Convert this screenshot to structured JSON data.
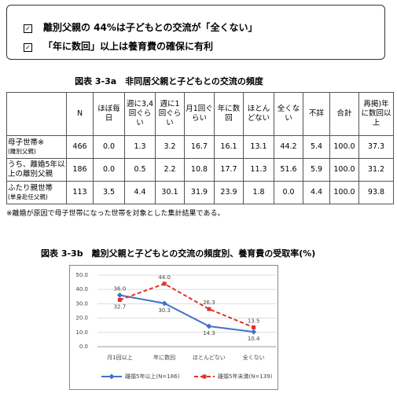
{
  "bullets": [
    "離別父親の 44%は子どもとの交流が「全くない」",
    "「年に数回」以上は養育費の確保に有利"
  ],
  "table": {
    "title": "図表 3-3a　非同居父親と子どもとの交流の頻度",
    "header": [
      "N",
      "ほぼ毎日",
      "週に3,4回ぐらい",
      "週に1回ぐらい",
      "月1回ぐらい",
      "年に数回",
      "ほとんどない",
      "全くない",
      "不詳",
      "合計",
      "再掲)年に数回以上"
    ],
    "rows": [
      {
        "label": "母子世帯※",
        "sublabel": "(離別父親)",
        "cells": [
          "466",
          "0.0",
          "1.3",
          "3.2",
          "16.7",
          "16.1",
          "13.1",
          "44.2",
          "5.4",
          "100.0",
          "37.3"
        ]
      },
      {
        "label": "うち、離婚5年以上の離別父親",
        "cells": [
          "186",
          "0.0",
          "0.5",
          "2.2",
          "10.8",
          "17.7",
          "11.3",
          "51.6",
          "5.9",
          "100.0",
          "31.2"
        ]
      },
      {
        "label": "ふたり親世帯",
        "sublabel": "(単身赴任父親)",
        "cells": [
          "113",
          "3.5",
          "4.4",
          "30.1",
          "31.9",
          "23.9",
          "1.8",
          "0.0",
          "4.4",
          "100.0",
          "93.8"
        ]
      }
    ]
  },
  "footnote": "※離婚が原因で母子世帯になった世帯を対象とした集計結果である。",
  "chart_data": {
    "type": "line",
    "title": "図表 3-3b　離別父親と子どもとの交流の頻度別、養育費の受取率(%)",
    "categories": [
      "月1回以上",
      "年に数回",
      "ほとんどない",
      "全くない"
    ],
    "series": [
      {
        "name": "離婚5年以上(N=186)",
        "color": "#4472c4",
        "line_style": "solid",
        "marker": "diamond",
        "values": [
          36.0,
          30.3,
          14.3,
          10.4
        ],
        "value_labels": [
          "36.0",
          "30.3",
          "14.3",
          "10.4"
        ]
      },
      {
        "name": "離婚5年未満(N=139)",
        "color": "#e03030",
        "line_style": "dashed",
        "marker": "square",
        "values": [
          32.7,
          44.0,
          26.3,
          13.5
        ],
        "value_labels": [
          "32.7",
          "44.0",
          "26.3",
          "13.5"
        ]
      }
    ],
    "ylim": [
      0,
      50
    ],
    "yticks": [
      {
        "value": 0,
        "label": "0.0"
      },
      {
        "value": 10,
        "label": "10.0"
      },
      {
        "value": 20,
        "label": "20.0"
      },
      {
        "value": 30,
        "label": "30.0"
      },
      {
        "value": 40,
        "label": "40.0"
      },
      {
        "value": 50,
        "label": "50.0"
      }
    ],
    "grid": true,
    "legend": "bottom"
  }
}
